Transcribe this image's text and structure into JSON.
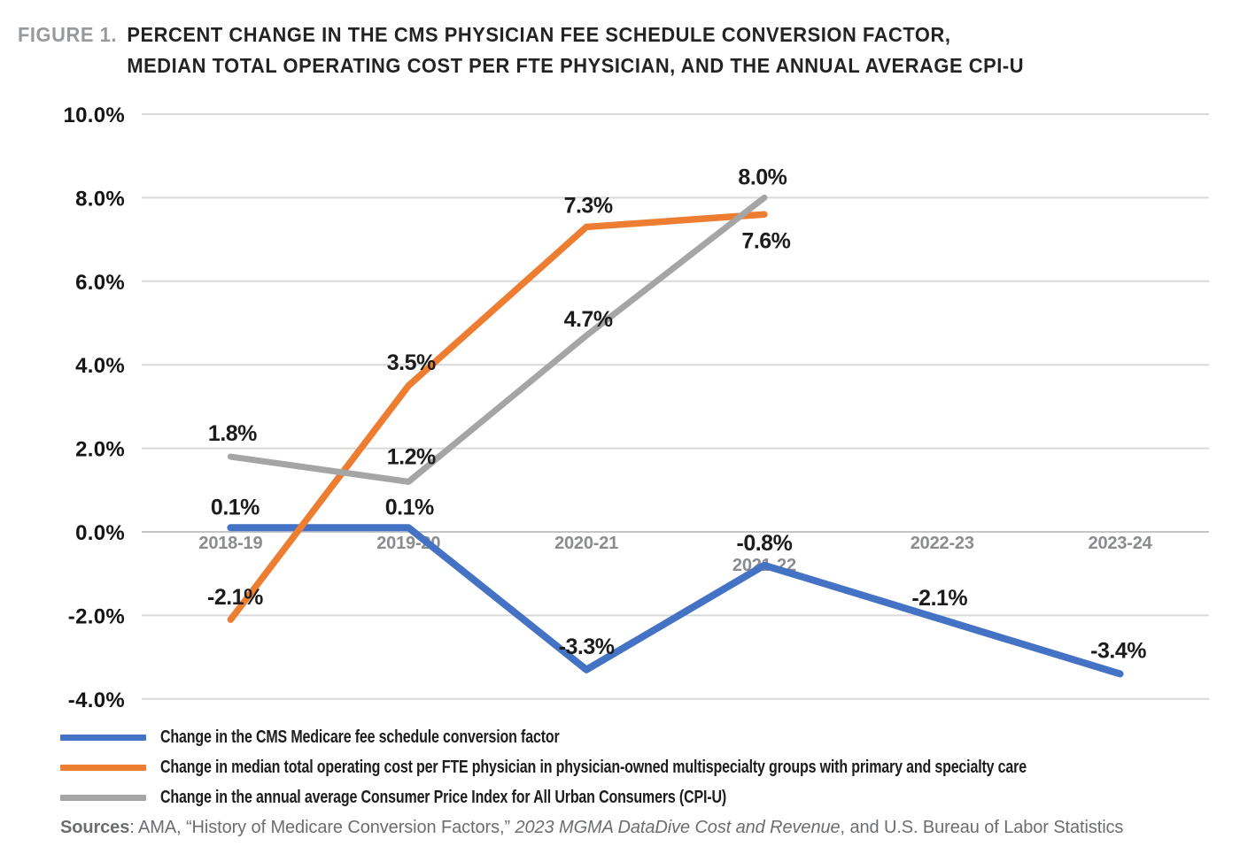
{
  "figure_label": "FIGURE 1.",
  "title_line1": "PERCENT CHANGE IN THE CMS PHYSICIAN FEE SCHEDULE CONVERSION FACTOR,",
  "title_line2": "MEDIAN TOTAL OPERATING COST PER FTE PHYSICIAN, AND THE ANNUAL AVERAGE CPI-U",
  "chart_data": {
    "type": "line",
    "title": "Percent change in the CMS physician fee schedule conversion factor, median total operating cost per FTE physician, and the annual average CPI-U",
    "categories": [
      "2018-19",
      "2019-20",
      "2020-21",
      "2021-22",
      "2022-23",
      "2023-24"
    ],
    "series": [
      {
        "name": "Change in the CMS Medicare fee schedule conversion factor",
        "color": "#4472C4",
        "values": [
          0.1,
          0.1,
          -3.3,
          -0.8,
          -2.1,
          -3.4
        ],
        "labels": [
          "0.1%",
          "0.1%",
          "-3.3%",
          "-0.8%",
          "-2.1%",
          "-3.4%"
        ]
      },
      {
        "name": "Change in median total operating cost per FTE physician in physician-owned multispecialty groups with primary and specialty care",
        "color": "#ED7D31",
        "values": [
          -2.1,
          3.5,
          7.3,
          7.6,
          null,
          null
        ],
        "labels": [
          "-2.1%",
          "3.5%",
          "7.3%",
          "7.6%"
        ]
      },
      {
        "name": "Change in the annual average Consumer Price Index for All Urban Consumers (CPI-U)",
        "color": "#A5A5A5",
        "values": [
          1.8,
          1.2,
          4.7,
          8.0,
          null,
          null
        ],
        "labels": [
          "1.8%",
          "1.2%",
          "4.7%",
          "8.0%"
        ]
      }
    ],
    "y_ticks": [
      "10.0%",
      "8.0%",
      "6.0%",
      "4.0%",
      "2.0%",
      "0.0%",
      "-2.0%",
      "-4.0%"
    ],
    "y_tick_values": [
      10,
      8,
      6,
      4,
      2,
      0,
      -2,
      -4
    ],
    "ylim": [
      -4,
      10
    ],
    "grid": true,
    "legend_position": "bottom"
  },
  "sources": {
    "prefix": "Sources",
    "before_italic": ": AMA, “History of Medicare Conversion Factors,” ",
    "italic": "2023 MGMA DataDive Cost and Revenue",
    "after_italic": ", and U.S. Bureau of Labor Statistics"
  }
}
